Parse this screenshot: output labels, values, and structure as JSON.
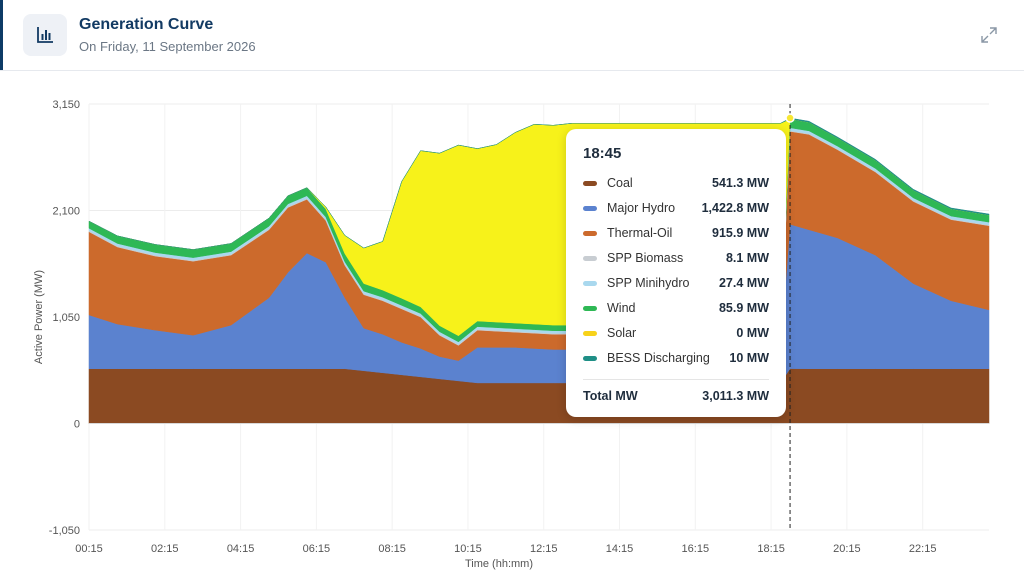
{
  "header": {
    "title": "Generation Curve",
    "subtitle": "On Friday, 11 September 2026",
    "icon": "bar-chart-icon",
    "expand_icon": "expand-icon"
  },
  "chart_data": {
    "type": "area",
    "stacked": true,
    "ylabel": "Active Power (MW)",
    "xlabel": "Time (hh:mm)",
    "ylim": [
      -1050,
      3150
    ],
    "yticks": [
      "3,150",
      "2,100",
      "1,050",
      "0",
      "-1,050"
    ],
    "ytick_values": [
      3150,
      2100,
      1050,
      0,
      -1050
    ],
    "xticks": [
      "00:15",
      "02:15",
      "04:15",
      "06:15",
      "08:15",
      "10:15",
      "12:15",
      "14:15",
      "16:15",
      "18:15",
      "20:15",
      "22:15"
    ],
    "xtick_hours": [
      0.25,
      2.25,
      4.25,
      6.25,
      8.25,
      10.25,
      12.25,
      14.25,
      16.25,
      18.25,
      20.25,
      22.25
    ],
    "xlim_hours": [
      0.25,
      24.0
    ],
    "grid": true,
    "marker_hour": 18.75,
    "x_hours": [
      0.25,
      1,
      2,
      3,
      4,
      5,
      5.5,
      6,
      6.5,
      7,
      7.5,
      8,
      8.5,
      9,
      9.5,
      10,
      10.5,
      11,
      11.5,
      12,
      12.5,
      13,
      14,
      15,
      16,
      17,
      18,
      18.5,
      18.75,
      19.25,
      20,
      21,
      22,
      23,
      24
    ],
    "series": [
      {
        "name": "Coal",
        "color": "#8b4a22",
        "values": [
          540,
          540,
          540,
          540,
          540,
          540,
          540,
          540,
          540,
          540,
          520,
          500,
          480,
          460,
          440,
          420,
          400,
          400,
          400,
          400,
          400,
          400,
          400,
          400,
          400,
          400,
          400,
          400,
          541.3,
          540,
          540,
          540,
          540,
          540,
          540
        ]
      },
      {
        "name": "Major Hydro",
        "color": "#5b82cf",
        "values": [
          530,
          440,
          380,
          330,
          430,
          700,
          950,
          1140,
          1050,
          700,
          420,
          380,
          320,
          280,
          220,
          200,
          350,
          350,
          350,
          340,
          330,
          330,
          330,
          330,
          330,
          330,
          330,
          330,
          1422.8,
          1370,
          1290,
          1120,
          840,
          670,
          580
        ]
      },
      {
        "name": "Thermal-Oil",
        "color": "#cc6a2c",
        "values": [
          820,
          760,
          730,
          730,
          690,
          670,
          640,
          530,
          410,
          320,
          330,
          330,
          330,
          310,
          210,
          150,
          170,
          160,
          150,
          150,
          150,
          150,
          150,
          150,
          150,
          150,
          150,
          150,
          915.9,
          940,
          870,
          820,
          810,
          800,
          830
        ]
      },
      {
        "name": "SPP Biomass",
        "color": "#c8cdd2",
        "values": [
          10,
          10,
          10,
          10,
          10,
          10,
          10,
          10,
          10,
          10,
          10,
          10,
          10,
          10,
          10,
          10,
          10,
          10,
          10,
          10,
          10,
          10,
          10,
          10,
          10,
          10,
          10,
          10,
          8.1,
          8,
          8,
          8,
          8,
          8,
          8
        ]
      },
      {
        "name": "SPP Minihydro",
        "color": "#a9d8ee",
        "values": [
          25,
          25,
          25,
          25,
          25,
          25,
          25,
          25,
          25,
          25,
          25,
          25,
          25,
          25,
          25,
          25,
          25,
          25,
          25,
          25,
          25,
          25,
          25,
          25,
          25,
          25,
          25,
          25,
          27.4,
          27,
          27,
          27,
          27,
          27,
          27
        ]
      },
      {
        "name": "Wind",
        "color": "#2eb855",
        "values": [
          70,
          75,
          80,
          80,
          80,
          80,
          80,
          80,
          80,
          80,
          75,
          70,
          70,
          65,
          60,
          60,
          55,
          55,
          55,
          55,
          55,
          55,
          55,
          55,
          55,
          55,
          55,
          55,
          85.9,
          85,
          80,
          80,
          75,
          70,
          70
        ]
      },
      {
        "name": "Solar",
        "color": "#f7f21a",
        "values": [
          0,
          0,
          0,
          0,
          0,
          0,
          0,
          0,
          20,
          180,
          350,
          480,
          1150,
          1540,
          1700,
          1880,
          1700,
          1750,
          1880,
          1970,
          1970,
          1990,
          1990,
          1990,
          1990,
          1990,
          1990,
          1990,
          0,
          0,
          0,
          0,
          0,
          0,
          0
        ]
      },
      {
        "name": "BESS Discharging",
        "color": "#1f8f86",
        "values": [
          0,
          0,
          0,
          0,
          0,
          0,
          0,
          0,
          0,
          0,
          0,
          0,
          0,
          0,
          0,
          0,
          0,
          0,
          0,
          0,
          0,
          0,
          0,
          0,
          0,
          0,
          0,
          0,
          10,
          10,
          10,
          10,
          10,
          10,
          10
        ]
      }
    ]
  },
  "tooltip": {
    "time": "18:45",
    "rows": [
      {
        "name": "Coal",
        "value": "541.3 MW",
        "color": "#8b4a22"
      },
      {
        "name": "Major Hydro",
        "value": "1,422.8 MW",
        "color": "#5b82cf"
      },
      {
        "name": "Thermal-Oil",
        "value": "915.9 MW",
        "color": "#cc6a2c"
      },
      {
        "name": "SPP Biomass",
        "value": "8.1 MW",
        "color": "#c8cdd2"
      },
      {
        "name": "SPP Minihydro",
        "value": "27.4 MW",
        "color": "#a9d8ee"
      },
      {
        "name": "Wind",
        "value": "85.9 MW",
        "color": "#2eb855"
      },
      {
        "name": "Solar",
        "value": "0 MW",
        "color": "#f7d21a"
      },
      {
        "name": "BESS Discharging",
        "value": "10 MW",
        "color": "#1f8f86"
      }
    ],
    "total_label": "Total MW",
    "total_value": "3,011.3 MW"
  }
}
